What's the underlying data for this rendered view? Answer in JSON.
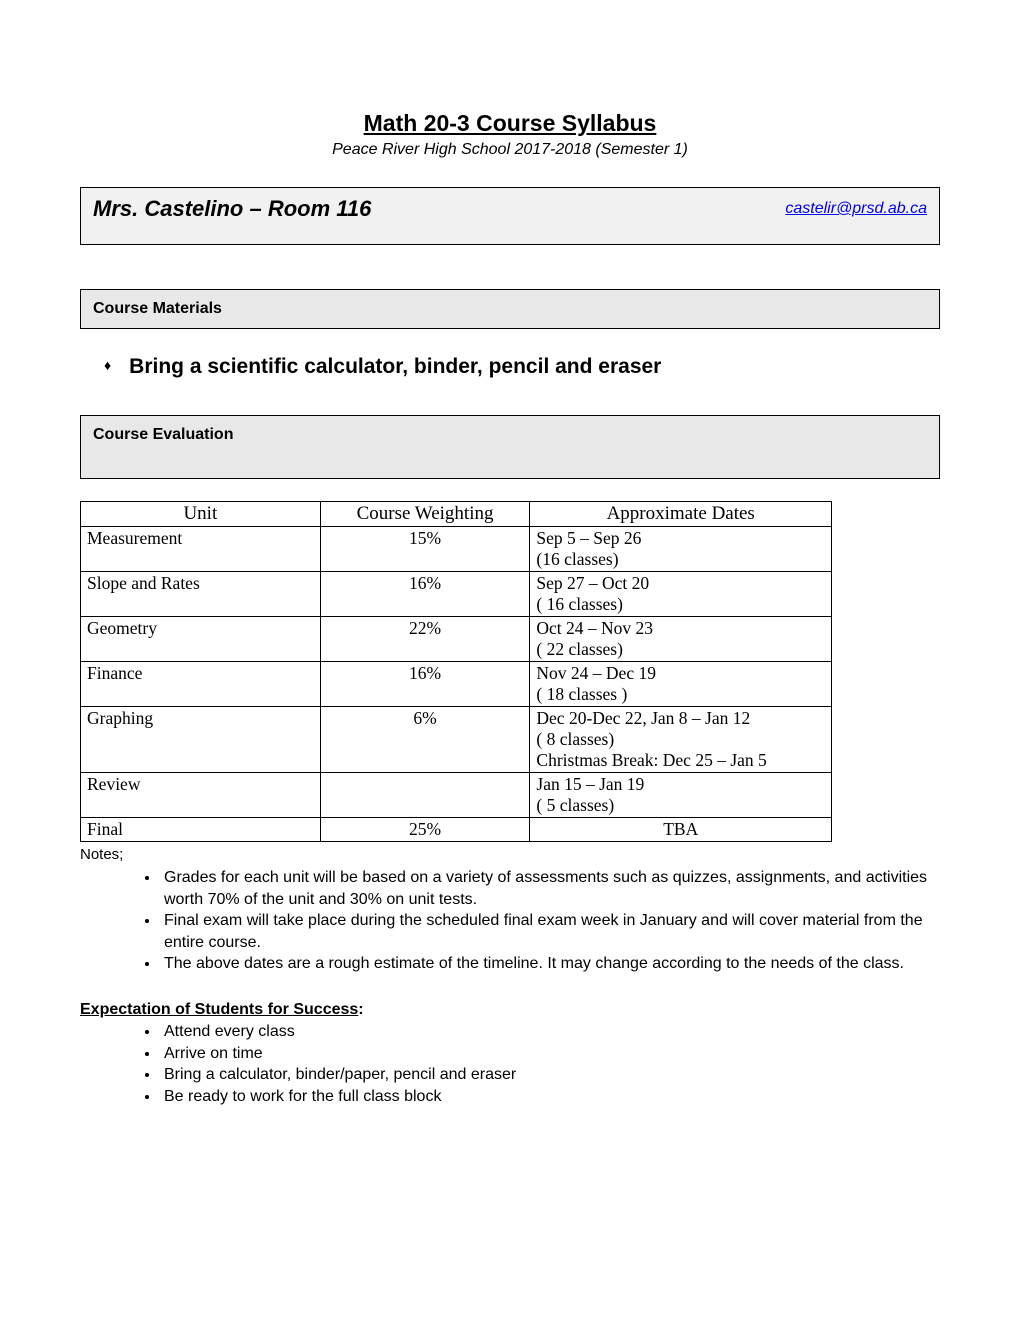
{
  "title": "Math 20-3 Course Syllabus",
  "subtitle": "Peace River High School 2017-2018 (Semester 1)",
  "teacher_line": "Mrs. Castelino – Room 116",
  "email": "castelir@prsd.ab.ca",
  "sections": {
    "materials_heading": "Course Materials",
    "evaluation_heading": "Course Evaluation"
  },
  "materials_bullet_glyph": "♦",
  "materials_text": "Bring a scientific calculator, binder, pencil and eraser",
  "eval_table": {
    "columns": [
      "Unit",
      "Course Weighting",
      "Approximate Dates"
    ],
    "rows": [
      {
        "unit": "Measurement",
        "weight": "15%",
        "dates": "Sep 5 – Sep 26\n(16 classes)",
        "pad": false
      },
      {
        "unit": "Slope and Rates",
        "weight": "16%",
        "dates": "Sep 27 – Oct 20\n( 16 classes)",
        "pad": false
      },
      {
        "unit": "Geometry",
        "weight": "22%",
        "dates": "Oct 24 – Nov 23\n( 22 classes)",
        "pad": true
      },
      {
        "unit": "Finance",
        "weight": "16%",
        "dates": "Nov 24 – Dec 19\n( 18 classes )",
        "pad": false
      },
      {
        "unit": "Graphing",
        "weight": "6%",
        "dates": "Dec 20-Dec 22, Jan 8 – Jan 12\n( 8 classes)\nChristmas Break: Dec 25 – Jan 5",
        "pad": false
      },
      {
        "unit": "Review",
        "weight": "",
        "dates": "Jan 15 – Jan 19\n( 5 classes)",
        "pad": false
      },
      {
        "unit": "Final",
        "weight": "25%",
        "dates": "TBA",
        "pad": false,
        "dates_center": true
      }
    ]
  },
  "notes_label": "Notes;",
  "notes": [
    "Grades for each unit will be based on a variety of assessments such as quizzes, assignments, and activities worth 70% of the unit and 30% on unit tests.",
    "Final exam will take place during the scheduled final exam week in January and will cover material from the entire course.",
    "The above dates are a rough estimate of the timeline.  It may change according to the needs of the class."
  ],
  "expect_heading": "Expectation of Students for Success",
  "expect_colon": ":",
  "expectations": [
    "Attend every class",
    "Arrive on time",
    "Bring a calculator, binder/paper, pencil and eraser",
    "Be ready to work for the full class block"
  ],
  "colors": {
    "page_bg": "#ffffff",
    "box_bg_light": "#f1f1f1",
    "box_bg_dark": "#e8e8e8",
    "border": "#000000",
    "link": "#0000ee",
    "text": "#000000"
  }
}
